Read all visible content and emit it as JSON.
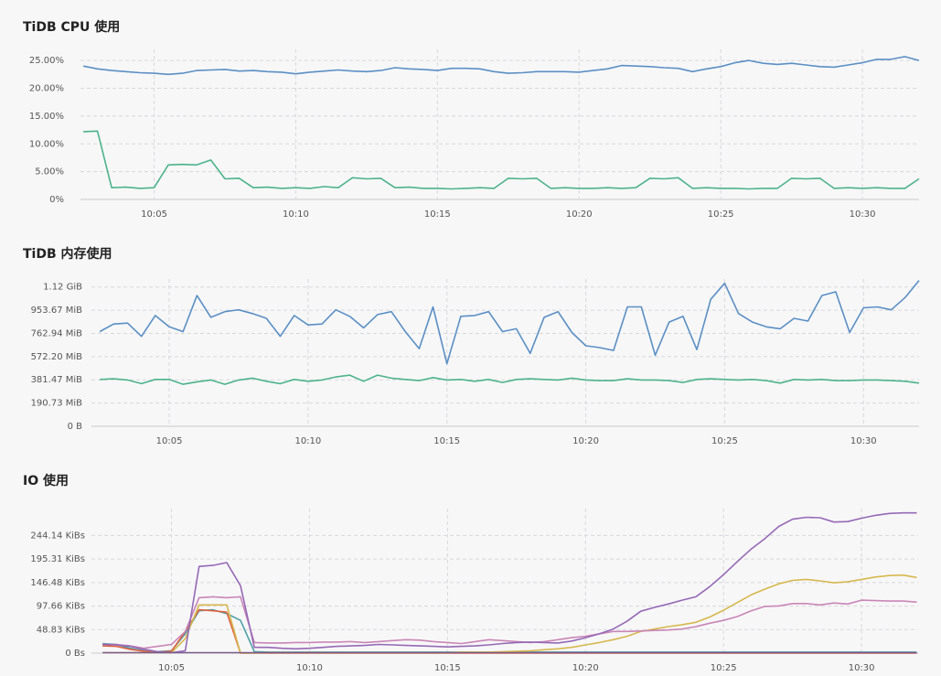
{
  "chart_data": [
    {
      "type": "line",
      "title": "TiDB CPU 使用",
      "x": [
        2.5,
        3,
        3.5,
        4,
        4.5,
        5,
        5.5,
        6,
        6.5,
        7,
        7.5,
        8,
        8.5,
        9,
        9.5,
        10,
        10.5,
        11,
        11.5,
        12,
        12.5,
        13,
        13.5,
        14,
        14.5,
        15,
        15.5,
        16,
        16.5,
        17,
        17.5,
        18,
        18.5,
        19,
        19.5,
        20,
        20.5,
        21,
        21.5,
        22,
        22.5,
        23,
        23.5,
        24,
        24.5,
        25,
        25.5,
        26,
        26.5,
        27,
        27.5,
        28,
        28.5,
        29,
        29.5,
        30,
        30.5,
        31,
        31.5,
        32
      ],
      "xlim": [
        2.4,
        32.0
      ],
      "xticks": [
        {
          "value": 5,
          "label": "10:05"
        },
        {
          "value": 10,
          "label": "10:10"
        },
        {
          "value": 15,
          "label": "10:15"
        },
        {
          "value": 20,
          "label": "10:20"
        },
        {
          "value": 25,
          "label": "10:25"
        },
        {
          "value": 30,
          "label": "10:30"
        }
      ],
      "ylim": [
        0,
        27
      ],
      "yticks": [
        {
          "value": 0,
          "label": "0%"
        },
        {
          "value": 5,
          "label": "5.00%"
        },
        {
          "value": 10,
          "label": "10.00%"
        },
        {
          "value": 15,
          "label": "15.00%"
        },
        {
          "value": 20,
          "label": "20.00%"
        },
        {
          "value": 25,
          "label": "25.00%"
        }
      ],
      "grid": true,
      "series": [
        {
          "color": "#5b8fc4",
          "values": [
            24,
            23.5,
            23.2,
            23,
            22.8,
            22.7,
            22.5,
            22.7,
            23.2,
            23.3,
            23.4,
            23.1,
            23.2,
            23,
            22.9,
            22.6,
            22.9,
            23.1,
            23.3,
            23.1,
            23.0,
            23.2,
            23.7,
            23.5,
            23.4,
            23.2,
            23.6,
            23.6,
            23.5,
            23.0,
            22.7,
            22.8,
            23,
            23,
            23,
            22.9,
            23.2,
            23.5,
            24.1,
            24.0,
            23.9,
            23.7,
            23.6,
            23.0,
            23.5,
            23.9,
            24.6,
            25.0,
            24.5,
            24.3,
            24.5,
            24.2,
            23.9,
            23.8,
            24.2,
            24.6,
            25.2,
            25.2,
            25.7,
            25.0
          ]
        },
        {
          "color": "#4db38b",
          "values": [
            12.2,
            12.3,
            2.1,
            2.2,
            2.0,
            2.1,
            6.2,
            6.3,
            6.2,
            7.1,
            3.7,
            3.8,
            2.1,
            2.2,
            2.0,
            2.1,
            2.0,
            2.3,
            2.1,
            3.9,
            3.7,
            3.8,
            2.1,
            2.2,
            2.0,
            2.0,
            1.9,
            2.0,
            2.1,
            2.0,
            3.8,
            3.7,
            3.8,
            2.0,
            2.1,
            2.0,
            2.0,
            2.1,
            2.0,
            2.1,
            3.8,
            3.7,
            3.9,
            2.0,
            2.1,
            2.0,
            2.0,
            1.9,
            2.0,
            2.0,
            3.8,
            3.7,
            3.8,
            2.0,
            2.1,
            2.0,
            2.1,
            2.0,
            2.0,
            3.7
          ]
        }
      ]
    },
    {
      "type": "line",
      "title": "TiDB 内存使用",
      "x": [
        2.5,
        3,
        3.5,
        4,
        4.5,
        5,
        5.5,
        6,
        6.5,
        7,
        7.5,
        8,
        8.5,
        9,
        9.5,
        10,
        10.5,
        11,
        11.5,
        12,
        12.5,
        13,
        13.5,
        14,
        14.5,
        15,
        15.5,
        16,
        16.5,
        17,
        17.5,
        18,
        18.5,
        19,
        19.5,
        20,
        20.5,
        21,
        21.5,
        22,
        22.5,
        23,
        23.5,
        24,
        24.5,
        25,
        25.5,
        26,
        26.5,
        27,
        27.5,
        28,
        28.5,
        29,
        29.5,
        30,
        30.5,
        31,
        31.5,
        32
      ],
      "xlim": [
        2.2,
        32.0
      ],
      "xticks": [
        {
          "value": 5,
          "label": "10:05"
        },
        {
          "value": 10,
          "label": "10:10"
        },
        {
          "value": 15,
          "label": "10:15"
        },
        {
          "value": 20,
          "label": "10:20"
        },
        {
          "value": 25,
          "label": "10:25"
        },
        {
          "value": 30,
          "label": "10:30"
        }
      ],
      "ylim": [
        0,
        1210
      ],
      "yticks": [
        {
          "value": 0,
          "label": "0 B"
        },
        {
          "value": 190.73,
          "label": "190.73 MiB"
        },
        {
          "value": 381.47,
          "label": "381.47 MiB"
        },
        {
          "value": 572.2,
          "label": "572.20 MiB"
        },
        {
          "value": 762.94,
          "label": "762.94 MiB"
        },
        {
          "value": 953.67,
          "label": "953.67 MiB"
        },
        {
          "value": 1144.41,
          "label": "1.12 GiB"
        }
      ],
      "grid": true,
      "series": [
        {
          "color": "#5b8fc4",
          "values": [
            778,
            840,
            848,
            739,
            910,
            817,
            778,
            1074,
            895,
            942,
            957,
            926,
            887,
            739,
            910,
            833,
            840,
            957,
            903,
            809,
            918,
            942,
            778,
            638,
            981,
            514,
            903,
            910,
            942,
            778,
            801,
            599,
            895,
            942,
            770,
            661,
            646,
            623,
            981,
            981,
            584,
            856,
            903,
            630,
            1043,
            1175,
            926,
            856,
            817,
            801,
            887,
            864,
            1074,
            1105,
            770,
            973,
            981,
            957,
            1058,
            1198
          ]
        },
        {
          "color": "#4db38b",
          "values": [
            385,
            390,
            380,
            350,
            385,
            385,
            345,
            365,
            380,
            345,
            380,
            395,
            370,
            350,
            385,
            370,
            380,
            405,
            420,
            370,
            420,
            395,
            385,
            375,
            400,
            380,
            385,
            370,
            385,
            360,
            385,
            390,
            385,
            380,
            395,
            380,
            375,
            375,
            390,
            380,
            380,
            375,
            360,
            385,
            390,
            385,
            380,
            385,
            375,
            355,
            385,
            380,
            385,
            375,
            375,
            380,
            380,
            375,
            370,
            355
          ]
        }
      ]
    },
    {
      "type": "line",
      "title": "IO 使用",
      "x": [
        2.5,
        3,
        3.5,
        4,
        4.5,
        5,
        5.5,
        6,
        6.5,
        7,
        7.5,
        8,
        8.5,
        9,
        9.5,
        10,
        10.5,
        11,
        11.5,
        12,
        12.5,
        13,
        13.5,
        14,
        14.5,
        15,
        15.5,
        16,
        16.5,
        17,
        17.5,
        18,
        18.5,
        19,
        19.5,
        20,
        20.5,
        21,
        21.5,
        22,
        22.5,
        23,
        23.5,
        24,
        24.5,
        25,
        25.5,
        26,
        26.5,
        27,
        27.5,
        28,
        28.5,
        29,
        29.5,
        30,
        30.5,
        31,
        31.5,
        32
      ],
      "xlim": [
        2.1,
        32.05
      ],
      "xticks": [
        {
          "value": 5,
          "label": "10:05"
        },
        {
          "value": 10,
          "label": "10:10"
        },
        {
          "value": 15,
          "label": "10:15"
        },
        {
          "value": 20,
          "label": "10:20"
        },
        {
          "value": 25,
          "label": "10:25"
        },
        {
          "value": 30,
          "label": "10:30"
        }
      ],
      "ylim": [
        0,
        300
      ],
      "yticks": [
        {
          "value": 0,
          "label": "0 Bs"
        },
        {
          "value": 48.83,
          "label": "48.83 KiBs"
        },
        {
          "value": 97.66,
          "label": "97.66 KiBs"
        },
        {
          "value": 146.48,
          "label": "146.48 KiBs"
        },
        {
          "value": 195.31,
          "label": "195.31 KiBs"
        },
        {
          "value": 244.14,
          "label": "244.14 KiBs"
        }
      ],
      "grid": true,
      "series": [
        {
          "color": "#4f9fa6",
          "values": [
            20,
            18,
            10,
            5,
            3,
            5,
            40,
            88,
            90,
            82,
            68,
            3,
            2,
            2,
            2,
            2,
            2,
            2,
            2,
            2,
            2,
            2,
            2,
            2,
            2,
            2,
            2,
            2,
            2,
            2,
            2,
            2,
            2,
            2,
            2,
            2,
            2,
            2,
            2,
            2,
            2,
            2,
            2,
            2,
            2,
            2,
            2,
            2,
            2,
            2,
            2,
            2,
            2,
            2,
            2,
            2,
            2,
            2,
            2,
            2
          ]
        },
        {
          "color": "#e0613f",
          "values": [
            15,
            14,
            8,
            4,
            2,
            4,
            45,
            90,
            88,
            85,
            0,
            0,
            0,
            0,
            0,
            0,
            0,
            0,
            0,
            0,
            0,
            0,
            0,
            0,
            0,
            0,
            0,
            0,
            0,
            0,
            0,
            0,
            0,
            0,
            0,
            0,
            0,
            0,
            0,
            0,
            0,
            0,
            0,
            0,
            0,
            0,
            0,
            0,
            0,
            0,
            0,
            0,
            0,
            0,
            0,
            0,
            0,
            0,
            0,
            0
          ]
        },
        {
          "color": "#d6b84e",
          "values": [
            1,
            1,
            1,
            1,
            1,
            1,
            30,
            100,
            100,
            100,
            0,
            0,
            1,
            1,
            1,
            1,
            1,
            1,
            1,
            1,
            1,
            1,
            1,
            1,
            1,
            1,
            2,
            2,
            2,
            3,
            4,
            5,
            7,
            9,
            12,
            17,
            22,
            28,
            35,
            45,
            50,
            55,
            59,
            64,
            75,
            89,
            105,
            121,
            133,
            144,
            151,
            153,
            150,
            146,
            148,
            153,
            158,
            161,
            162,
            157
          ]
        },
        {
          "color": "#c986b6",
          "values": [
            18,
            18,
            15,
            10,
            14,
            18,
            45,
            115,
            117,
            115,
            117,
            22,
            21,
            21,
            22,
            22,
            23,
            23,
            24,
            22,
            24,
            26,
            28,
            27,
            24,
            22,
            20,
            24,
            28,
            26,
            24,
            22,
            24,
            28,
            32,
            35,
            40,
            45,
            45,
            46,
            47,
            48,
            50,
            55,
            62,
            68,
            76,
            88,
            97,
            98,
            103,
            103,
            100,
            104,
            102,
            110,
            109,
            108,
            108,
            106
          ]
        },
        {
          "color": "#9569b5",
          "values": [
            18,
            17,
            14,
            8,
            3,
            1,
            5,
            180,
            182,
            188,
            140,
            12,
            12,
            10,
            9,
            10,
            12,
            14,
            15,
            16,
            18,
            17,
            16,
            15,
            14,
            13,
            14,
            15,
            17,
            20,
            22,
            23,
            22,
            21,
            25,
            32,
            40,
            50,
            66,
            87,
            95,
            102,
            110,
            117,
            138,
            163,
            190,
            216,
            238,
            263,
            278,
            282,
            281,
            272,
            273,
            280,
            286,
            290,
            291,
            291
          ]
        },
        {
          "color": "#7a5b8c",
          "values": [
            1,
            1,
            1,
            1,
            1,
            1,
            1,
            1,
            1,
            1,
            1,
            1,
            1,
            1,
            1,
            1,
            1,
            1,
            1,
            1,
            1,
            1,
            1,
            1,
            1,
            1,
            1,
            1,
            1,
            1,
            1,
            1,
            1,
            1,
            1,
            1,
            1,
            1,
            1,
            1,
            1,
            1,
            1,
            1,
            1,
            1,
            1,
            1,
            1,
            1,
            1,
            1,
            1,
            1,
            1,
            1,
            1,
            1,
            1,
            1
          ]
        }
      ]
    }
  ]
}
